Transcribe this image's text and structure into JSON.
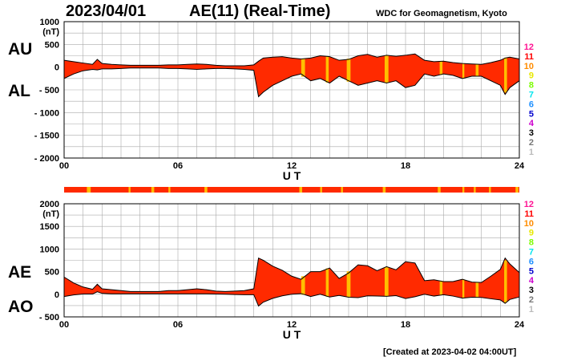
{
  "header": {
    "date": "2023/04/01",
    "title": "AE(11) (Real-Time)",
    "credit": "WDC for Geomagnetism, Kyoto",
    "created": "[Created at 2023-04-02 04:00UT]"
  },
  "colors": {
    "fill": "#ff2a00",
    "highlight": "#ffbf00",
    "grid": "#aaaaaa",
    "outline": "#000000"
  },
  "station_scale": {
    "labels": [
      "12",
      "11",
      "10",
      "9",
      "8",
      "7",
      "6",
      "5",
      "4",
      "3",
      "2",
      "1"
    ],
    "colors": [
      "#ff1493",
      "#ff0000",
      "#ff8c00",
      "#e8e800",
      "#7cfc00",
      "#00e5ee",
      "#1e90ff",
      "#0000cd",
      "#cc00cc",
      "#000000",
      "#777777",
      "#bbbbbb"
    ]
  },
  "chart_data": [
    {
      "type": "area",
      "name": "au-al-panel",
      "series_labels": [
        "AU",
        "AL"
      ],
      "unit": "(nT)",
      "xlabel": "U T",
      "xlim": [
        0,
        24
      ],
      "xticks": [
        "00",
        "06",
        "12",
        "18",
        "24"
      ],
      "ylim": [
        -2000,
        1000
      ],
      "yticks": [
        "1000",
        "500",
        "0",
        "- 500",
        "- 1000",
        "- 1500",
        "- 2000"
      ],
      "x": [
        0,
        0.5,
        1,
        1.5,
        1.75,
        2,
        2.5,
        3,
        3.5,
        4,
        4.5,
        5,
        5.5,
        6,
        6.5,
        7,
        7.5,
        8,
        8.5,
        9,
        9.5,
        10,
        10.25,
        10.5,
        11,
        11.5,
        12,
        12.5,
        13,
        13.5,
        14,
        14.5,
        15,
        15.5,
        16,
        16.5,
        17,
        17.5,
        18,
        18.5,
        19,
        19.5,
        20,
        20.5,
        21,
        21.5,
        22,
        22.5,
        23,
        23.25,
        23.5,
        24
      ],
      "series": [
        {
          "name": "AU",
          "values": [
            150,
            120,
            90,
            60,
            170,
            80,
            60,
            50,
            40,
            40,
            40,
            40,
            50,
            50,
            60,
            70,
            60,
            40,
            30,
            30,
            30,
            50,
            130,
            200,
            220,
            230,
            200,
            180,
            200,
            250,
            230,
            150,
            170,
            250,
            280,
            220,
            260,
            240,
            260,
            290,
            150,
            120,
            130,
            100,
            80,
            70,
            60,
            100,
            150,
            200,
            220,
            180
          ]
        },
        {
          "name": "AL",
          "values": [
            -250,
            -150,
            -80,
            -50,
            -60,
            -40,
            -40,
            -30,
            -20,
            -20,
            -20,
            -20,
            -30,
            -30,
            -40,
            -50,
            -40,
            -30,
            -30,
            -40,
            -50,
            -70,
            -650,
            -550,
            -400,
            -300,
            -200,
            -150,
            -300,
            -250,
            -350,
            -200,
            -300,
            -400,
            -350,
            -300,
            -350,
            -300,
            -450,
            -400,
            -150,
            -200,
            -150,
            -180,
            -250,
            -200,
            -200,
            -300,
            -400,
            -600,
            -450,
            -300
          ]
        }
      ],
      "station_count_bands": [
        [
          12.5,
          12.7
        ],
        [
          13.8,
          13.95
        ],
        [
          14.9,
          15.1
        ],
        [
          16.9,
          17.1
        ],
        [
          19.8,
          19.95
        ],
        [
          21.0,
          21.1
        ],
        [
          21.7,
          21.85
        ],
        [
          23.2,
          23.35
        ]
      ]
    },
    {
      "type": "area",
      "name": "ae-ao-panel",
      "series_labels": [
        "AE",
        "AO"
      ],
      "unit": "(nT)",
      "xlabel": "U T",
      "xlim": [
        0,
        24
      ],
      "xticks": [
        "00",
        "06",
        "12",
        "18",
        "24"
      ],
      "ylim": [
        -500,
        2000
      ],
      "yticks": [
        "2000",
        "1500",
        "1000",
        "500",
        "0",
        "- 500"
      ],
      "x": [
        0,
        0.5,
        1,
        1.5,
        1.75,
        2,
        2.5,
        3,
        3.5,
        4,
        4.5,
        5,
        5.5,
        6,
        6.5,
        7,
        7.5,
        8,
        8.5,
        9,
        9.5,
        10,
        10.25,
        10.5,
        11,
        11.5,
        12,
        12.5,
        13,
        13.5,
        14,
        14.5,
        15,
        15.5,
        16,
        16.5,
        17,
        17.5,
        18,
        18.5,
        19,
        19.5,
        20,
        20.5,
        21,
        21.5,
        22,
        22.5,
        23,
        23.25,
        23.5,
        24
      ],
      "series": [
        {
          "name": "AE",
          "values": [
            380,
            250,
            160,
            110,
            220,
            120,
            100,
            80,
            60,
            60,
            60,
            60,
            80,
            80,
            100,
            120,
            100,
            70,
            60,
            70,
            80,
            120,
            800,
            750,
            620,
            530,
            400,
            330,
            500,
            500,
            580,
            350,
            470,
            650,
            630,
            520,
            610,
            540,
            720,
            690,
            300,
            320,
            280,
            280,
            330,
            270,
            260,
            400,
            550,
            800,
            670,
            480
          ]
        },
        {
          "name": "AO",
          "values": [
            -50,
            -15,
            5,
            5,
            55,
            20,
            10,
            10,
            10,
            10,
            10,
            10,
            10,
            10,
            10,
            10,
            10,
            5,
            0,
            -5,
            -10,
            -10,
            -260,
            -175,
            -90,
            -35,
            0,
            15,
            -50,
            0,
            -60,
            -25,
            -65,
            -75,
            -35,
            -40,
            -45,
            -30,
            -95,
            -55,
            0,
            -40,
            -10,
            -40,
            -85,
            -65,
            -70,
            -100,
            -125,
            -200,
            -115,
            -60
          ]
        }
      ],
      "station_count_bands": [
        [
          12.5,
          12.7
        ],
        [
          13.8,
          13.95
        ],
        [
          14.9,
          15.1
        ],
        [
          16.9,
          17.1
        ],
        [
          19.8,
          19.95
        ],
        [
          21.0,
          21.1
        ],
        [
          21.7,
          21.85
        ],
        [
          23.2,
          23.35
        ]
      ]
    }
  ],
  "station_strip_bands": [
    [
      1.2,
      1.4
    ],
    [
      3.4,
      3.5
    ],
    [
      4.6,
      4.75
    ],
    [
      5.5,
      5.6
    ],
    [
      7.4,
      7.55
    ],
    [
      12.4,
      12.55
    ],
    [
      13.5,
      13.6
    ],
    [
      14.6,
      14.7
    ],
    [
      16.8,
      16.95
    ],
    [
      19.7,
      19.85
    ],
    [
      21.0,
      21.1
    ],
    [
      21.6,
      21.7
    ],
    [
      22.4,
      22.5
    ],
    [
      23.8,
      23.95
    ]
  ]
}
